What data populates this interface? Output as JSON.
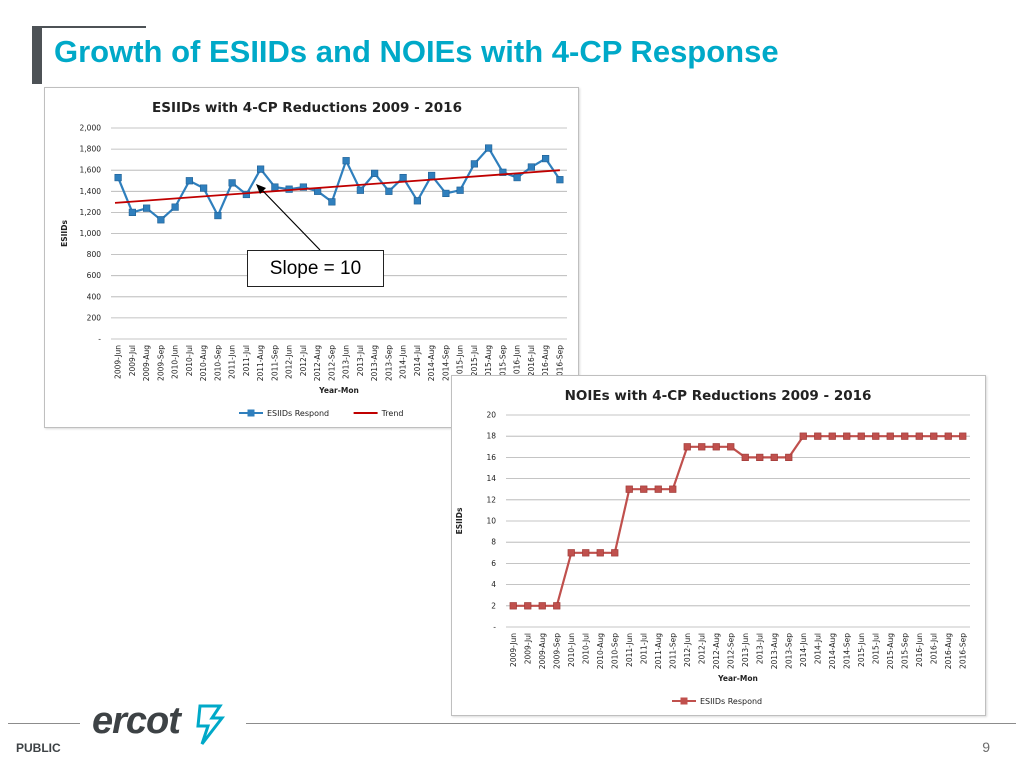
{
  "slide": {
    "title": "Growth of ESIIDs and NOIEs with 4-CP Response",
    "footer_label": "PUBLIC",
    "page_number": "9",
    "logo_text": "ercot"
  },
  "annotation": {
    "text": "Slope = 10"
  },
  "colors": {
    "title": "#00a9c8",
    "series_blue": "#2f7fbd",
    "trend_red": "#c00000",
    "series_red": "#c0504d"
  },
  "chart_data": [
    {
      "type": "line",
      "title": "ESIIDs with 4-CP Reductions 2009 - 2016",
      "xlabel": "Year-Mon",
      "ylabel": "ESIIDs",
      "ylim": [
        0,
        2000
      ],
      "yticks": [
        "-",
        "200",
        "400",
        "600",
        "800",
        "1,000",
        "1,200",
        "1,400",
        "1,600",
        "1,800",
        "2,000"
      ],
      "grid": true,
      "legend_position": "bottom",
      "categories": [
        "2009-Jun",
        "2009-Jul",
        "2009-Aug",
        "2009-Sep",
        "2010-Jun",
        "2010-Jul",
        "2010-Aug",
        "2010-Sep",
        "2011-Jun",
        "2011-Jul",
        "2011-Aug",
        "2011-Sep",
        "2012-Jun",
        "2012-Jul",
        "2012-Aug",
        "2012-Sep",
        "2013-Jun",
        "2013-Jul",
        "2013-Aug",
        "2013-Sep",
        "2014-Jun",
        "2014-Jul",
        "2014-Aug",
        "2014-Sep",
        "2015-Jun",
        "2015-Jul",
        "2015-Aug",
        "2015-Sep",
        "2016-Jun",
        "2016-Jul",
        "2016-Aug",
        "2016-Sep"
      ],
      "series": [
        {
          "name": "ESIIDs Respond",
          "values": [
            1530,
            1200,
            1240,
            1130,
            1250,
            1500,
            1430,
            1170,
            1480,
            1370,
            1610,
            1440,
            1420,
            1440,
            1400,
            1300,
            1690,
            1410,
            1570,
            1400,
            1530,
            1310,
            1550,
            1380,
            1410,
            1660,
            1810,
            1580,
            1530,
            1630,
            1710,
            1510
          ]
        },
        {
          "name": "Trend",
          "values": [
            1290,
            1300,
            1310,
            1320,
            1330,
            1340,
            1350,
            1360,
            1370,
            1380,
            1390,
            1400,
            1410,
            1420,
            1430,
            1440,
            1450,
            1460,
            1470,
            1480,
            1490,
            1500,
            1510,
            1520,
            1530,
            1540,
            1550,
            1560,
            1570,
            1580,
            1590,
            1600
          ]
        }
      ]
    },
    {
      "type": "line",
      "title": "NOIEs with 4-CP Reductions 2009 - 2016",
      "xlabel": "Year-Mon",
      "ylabel": "ESIIDs",
      "ylim": [
        0,
        20
      ],
      "yticks": [
        "-",
        "2",
        "4",
        "6",
        "8",
        "10",
        "12",
        "14",
        "16",
        "18",
        "20"
      ],
      "grid": true,
      "legend_position": "bottom",
      "categories": [
        "2009-Jun",
        "2009-Jul",
        "2009-Aug",
        "2009-Sep",
        "2010-Jun",
        "2010-Jul",
        "2010-Aug",
        "2010-Sep",
        "2011-Jun",
        "2011-Jul",
        "2011-Aug",
        "2011-Sep",
        "2012-Jun",
        "2012-Jul",
        "2012-Aug",
        "2012-Sep",
        "2013-Jun",
        "2013-Jul",
        "2013-Aug",
        "2013-Sep",
        "2014-Jun",
        "2014-Jul",
        "2014-Aug",
        "2014-Sep",
        "2015-Jun",
        "2015-Jul",
        "2015-Aug",
        "2015-Sep",
        "2016-Jun",
        "2016-Jul",
        "2016-Aug",
        "2016-Sep"
      ],
      "series": [
        {
          "name": "ESIIDs Respond",
          "values": [
            2,
            2,
            2,
            2,
            7,
            7,
            7,
            7,
            13,
            13,
            13,
            13,
            17,
            17,
            17,
            17,
            16,
            16,
            16,
            16,
            18,
            18,
            18,
            18,
            18,
            18,
            18,
            18,
            18,
            18,
            18,
            18
          ]
        }
      ]
    }
  ]
}
